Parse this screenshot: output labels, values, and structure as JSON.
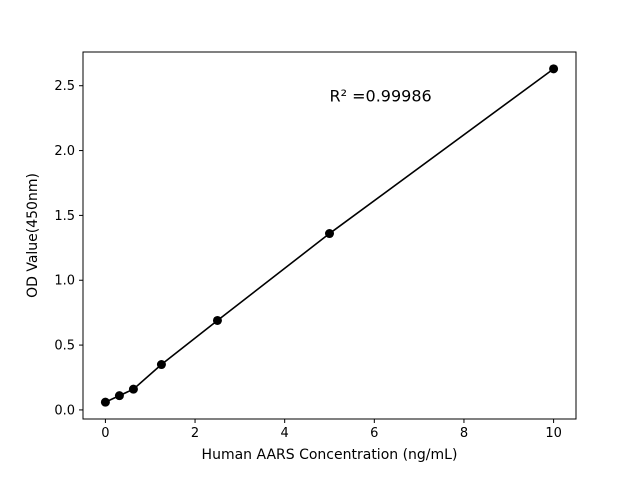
{
  "figure": {
    "background": "#ffffff",
    "axes_color": "#000000"
  },
  "chart_data": {
    "type": "scatter",
    "title": "",
    "xlabel": "Human AARS Concentration (ng/mL)",
    "ylabel": "OD Value(450nm)",
    "x": [
      0,
      0.3125,
      0.625,
      1.25,
      2.5,
      5,
      10
    ],
    "y": [
      0.06,
      0.11,
      0.16,
      0.35,
      0.69,
      1.36,
      2.63
    ],
    "series_name": "Human AARS standard curve",
    "line": true,
    "line_color": "#000000",
    "line_width": 1.6,
    "marker": "circle",
    "marker_color": "#000000",
    "marker_radius": 4.5,
    "xlim": [
      -0.5,
      10.5
    ],
    "ylim": [
      -0.07,
      2.76
    ],
    "xticks": [
      0,
      2,
      4,
      6,
      8,
      10
    ],
    "yticks": [
      0.0,
      0.5,
      1.0,
      1.5,
      2.0,
      2.5
    ],
    "ytick_decimals": 1,
    "grid": false,
    "legend": null,
    "annotation": {
      "text": "R² =0.99986",
      "x": 5.0,
      "y": 2.38
    }
  }
}
